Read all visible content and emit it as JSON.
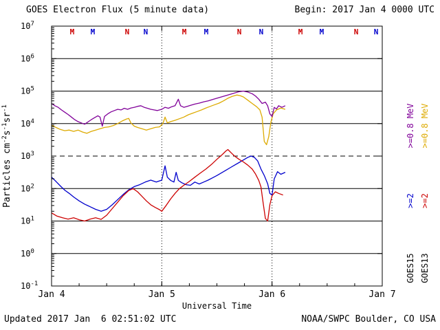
{
  "header": {
    "title": "GOES Electron Flux (5 minute data)",
    "begin": "Begin: 2017 Jan 4 0000 UTC"
  },
  "footer": {
    "updated": "Updated 2017 Jan  6 02:51:02 UTC",
    "source": "NOAA/SWPC Boulder, CO USA"
  },
  "colors": {
    "goes15_2mev": "#0000CC",
    "goes13_2mev": "#CC0000",
    "goes15_08mev": "#800099",
    "goes13_08mev": "#DDAA00",
    "marker_red": "#CC0000",
    "marker_blue": "#0000CC",
    "axis": "#000000"
  },
  "chart_data": {
    "type": "line",
    "title": "GOES Electron Flux (5 minute data)",
    "xlabel": "Universal Time",
    "ylabel": "Particles cm-2s-1sr-1",
    "ylabel_parts": [
      {
        "t": "Particles cm"
      },
      {
        "s": "-2"
      },
      {
        "t": "s"
      },
      {
        "s": "-1"
      },
      {
        "t": "sr"
      },
      {
        "s": "-1"
      }
    ],
    "y_value_type": "log10_flux",
    "xlim_days": [
      0,
      3
    ],
    "ylog_lim": [
      -1,
      7
    ],
    "x_ticks": [
      {
        "t": 0,
        "label": "Jan 4"
      },
      {
        "t": 1,
        "label": "Jan 5"
      },
      {
        "t": 2,
        "label": "Jan 6"
      },
      {
        "t": 3,
        "label": "Jan 7"
      }
    ],
    "y_tick_exponents": [
      -1,
      0,
      1,
      2,
      3,
      4,
      5,
      6,
      7
    ],
    "solid_gridline_exponents": [
      0,
      1,
      2,
      4,
      5,
      6
    ],
    "threshold_exponent": 3,
    "day_gridlines": [
      1,
      2
    ],
    "series": [
      {
        "name": "GOES13 >=0.8 MeV",
        "color_key": "goes13_08mev",
        "points": [
          [
            0,
            3.95
          ],
          [
            0.04,
            3.88
          ],
          [
            0.08,
            3.82
          ],
          [
            0.12,
            3.78
          ],
          [
            0.16,
            3.8
          ],
          [
            0.2,
            3.76
          ],
          [
            0.24,
            3.8
          ],
          [
            0.28,
            3.74
          ],
          [
            0.32,
            3.7
          ],
          [
            0.36,
            3.76
          ],
          [
            0.4,
            3.8
          ],
          [
            0.44,
            3.84
          ],
          [
            0.48,
            3.88
          ],
          [
            0.52,
            3.9
          ],
          [
            0.56,
            3.94
          ],
          [
            0.6,
            4.0
          ],
          [
            0.64,
            4.08
          ],
          [
            0.68,
            4.14
          ],
          [
            0.7,
            4.16
          ],
          [
            0.72,
            4.02
          ],
          [
            0.75,
            3.92
          ],
          [
            0.78,
            3.88
          ],
          [
            0.82,
            3.84
          ],
          [
            0.86,
            3.8
          ],
          [
            0.9,
            3.84
          ],
          [
            0.94,
            3.88
          ],
          [
            0.98,
            3.9
          ],
          [
            1.01,
            4.0
          ],
          [
            1.03,
            4.2
          ],
          [
            1.05,
            4.02
          ],
          [
            1.08,
            4.06
          ],
          [
            1.12,
            4.1
          ],
          [
            1.16,
            4.15
          ],
          [
            1.2,
            4.2
          ],
          [
            1.24,
            4.27
          ],
          [
            1.28,
            4.32
          ],
          [
            1.32,
            4.37
          ],
          [
            1.36,
            4.42
          ],
          [
            1.4,
            4.48
          ],
          [
            1.44,
            4.53
          ],
          [
            1.48,
            4.58
          ],
          [
            1.52,
            4.63
          ],
          [
            1.56,
            4.7
          ],
          [
            1.6,
            4.78
          ],
          [
            1.64,
            4.84
          ],
          [
            1.68,
            4.88
          ],
          [
            1.71,
            4.86
          ],
          [
            1.74,
            4.82
          ],
          [
            1.78,
            4.72
          ],
          [
            1.82,
            4.62
          ],
          [
            1.86,
            4.52
          ],
          [
            1.89,
            4.42
          ],
          [
            1.91,
            4.2
          ],
          [
            1.93,
            3.45
          ],
          [
            1.95,
            3.35
          ],
          [
            1.97,
            3.6
          ],
          [
            1.99,
            4.05
          ],
          [
            2.01,
            4.3
          ],
          [
            2.04,
            4.42
          ],
          [
            2.08,
            4.48
          ],
          [
            2.12,
            4.44
          ]
        ]
      },
      {
        "name": "GOES15 >=0.8 MeV",
        "color_key": "goes15_08mev",
        "points": [
          [
            0,
            4.62
          ],
          [
            0.03,
            4.55
          ],
          [
            0.06,
            4.5
          ],
          [
            0.09,
            4.42
          ],
          [
            0.12,
            4.35
          ],
          [
            0.15,
            4.28
          ],
          [
            0.18,
            4.2
          ],
          [
            0.21,
            4.12
          ],
          [
            0.24,
            4.06
          ],
          [
            0.27,
            4.02
          ],
          [
            0.3,
            3.98
          ],
          [
            0.33,
            4.05
          ],
          [
            0.36,
            4.12
          ],
          [
            0.39,
            4.18
          ],
          [
            0.42,
            4.24
          ],
          [
            0.44,
            4.2
          ],
          [
            0.46,
            3.92
          ],
          [
            0.48,
            4.22
          ],
          [
            0.51,
            4.3
          ],
          [
            0.54,
            4.36
          ],
          [
            0.57,
            4.4
          ],
          [
            0.6,
            4.44
          ],
          [
            0.63,
            4.42
          ],
          [
            0.66,
            4.47
          ],
          [
            0.69,
            4.44
          ],
          [
            0.72,
            4.48
          ],
          [
            0.75,
            4.5
          ],
          [
            0.78,
            4.53
          ],
          [
            0.81,
            4.55
          ],
          [
            0.84,
            4.5
          ],
          [
            0.87,
            4.47
          ],
          [
            0.9,
            4.44
          ],
          [
            0.93,
            4.42
          ],
          [
            0.96,
            4.4
          ],
          [
            1.0,
            4.44
          ],
          [
            1.03,
            4.5
          ],
          [
            1.06,
            4.47
          ],
          [
            1.09,
            4.52
          ],
          [
            1.12,
            4.55
          ],
          [
            1.15,
            4.75
          ],
          [
            1.17,
            4.55
          ],
          [
            1.2,
            4.5
          ],
          [
            1.23,
            4.53
          ],
          [
            1.26,
            4.56
          ],
          [
            1.3,
            4.6
          ],
          [
            1.34,
            4.63
          ],
          [
            1.38,
            4.67
          ],
          [
            1.42,
            4.7
          ],
          [
            1.46,
            4.74
          ],
          [
            1.5,
            4.78
          ],
          [
            1.54,
            4.82
          ],
          [
            1.58,
            4.86
          ],
          [
            1.62,
            4.9
          ],
          [
            1.66,
            4.94
          ],
          [
            1.7,
            4.98
          ],
          [
            1.74,
            5.0
          ],
          [
            1.78,
            4.97
          ],
          [
            1.82,
            4.92
          ],
          [
            1.85,
            4.85
          ],
          [
            1.88,
            4.75
          ],
          [
            1.91,
            4.62
          ],
          [
            1.94,
            4.66
          ],
          [
            1.96,
            4.55
          ],
          [
            1.98,
            4.3
          ],
          [
            2.0,
            4.22
          ],
          [
            2.02,
            4.5
          ],
          [
            2.04,
            4.45
          ],
          [
            2.06,
            4.55
          ],
          [
            2.09,
            4.5
          ],
          [
            2.12,
            4.55
          ]
        ]
      },
      {
        "name": "GOES15 >=2 MeV",
        "color_key": "goes15_2mev",
        "points": [
          [
            0,
            2.35
          ],
          [
            0.04,
            2.22
          ],
          [
            0.08,
            2.08
          ],
          [
            0.12,
            1.95
          ],
          [
            0.16,
            1.85
          ],
          [
            0.2,
            1.74
          ],
          [
            0.25,
            1.62
          ],
          [
            0.3,
            1.52
          ],
          [
            0.35,
            1.44
          ],
          [
            0.4,
            1.36
          ],
          [
            0.45,
            1.3
          ],
          [
            0.5,
            1.36
          ],
          [
            0.55,
            1.5
          ],
          [
            0.6,
            1.66
          ],
          [
            0.65,
            1.82
          ],
          [
            0.7,
            1.96
          ],
          [
            0.75,
            2.06
          ],
          [
            0.8,
            2.12
          ],
          [
            0.85,
            2.2
          ],
          [
            0.9,
            2.26
          ],
          [
            0.95,
            2.2
          ],
          [
            1.0,
            2.26
          ],
          [
            1.03,
            2.7
          ],
          [
            1.05,
            2.35
          ],
          [
            1.08,
            2.25
          ],
          [
            1.11,
            2.2
          ],
          [
            1.13,
            2.5
          ],
          [
            1.15,
            2.25
          ],
          [
            1.18,
            2.18
          ],
          [
            1.22,
            2.12
          ],
          [
            1.26,
            2.1
          ],
          [
            1.3,
            2.2
          ],
          [
            1.34,
            2.14
          ],
          [
            1.38,
            2.2
          ],
          [
            1.42,
            2.26
          ],
          [
            1.46,
            2.33
          ],
          [
            1.5,
            2.4
          ],
          [
            1.54,
            2.48
          ],
          [
            1.58,
            2.56
          ],
          [
            1.62,
            2.64
          ],
          [
            1.66,
            2.72
          ],
          [
            1.7,
            2.8
          ],
          [
            1.74,
            2.88
          ],
          [
            1.78,
            2.96
          ],
          [
            1.81,
            3.0
          ],
          [
            1.84,
            2.96
          ],
          [
            1.87,
            2.85
          ],
          [
            1.9,
            2.6
          ],
          [
            1.93,
            2.4
          ],
          [
            1.96,
            2.15
          ],
          [
            1.98,
            1.85
          ],
          [
            2.0,
            1.8
          ],
          [
            2.02,
            2.3
          ],
          [
            2.05,
            2.52
          ],
          [
            2.08,
            2.44
          ],
          [
            2.12,
            2.5
          ]
        ]
      },
      {
        "name": "GOES13 >=2 MeV",
        "color_key": "goes13_2mev",
        "points": [
          [
            0,
            1.25
          ],
          [
            0.05,
            1.15
          ],
          [
            0.1,
            1.1
          ],
          [
            0.15,
            1.06
          ],
          [
            0.2,
            1.1
          ],
          [
            0.25,
            1.04
          ],
          [
            0.3,
            1.0
          ],
          [
            0.35,
            1.06
          ],
          [
            0.4,
            1.1
          ],
          [
            0.45,
            1.05
          ],
          [
            0.5,
            1.18
          ],
          [
            0.55,
            1.38
          ],
          [
            0.6,
            1.58
          ],
          [
            0.65,
            1.78
          ],
          [
            0.7,
            1.94
          ],
          [
            0.74,
            2.0
          ],
          [
            0.78,
            1.9
          ],
          [
            0.82,
            1.76
          ],
          [
            0.86,
            1.62
          ],
          [
            0.9,
            1.5
          ],
          [
            0.94,
            1.42
          ],
          [
            0.98,
            1.35
          ],
          [
            1.0,
            1.3
          ],
          [
            1.04,
            1.48
          ],
          [
            1.08,
            1.68
          ],
          [
            1.12,
            1.85
          ],
          [
            1.16,
            2.0
          ],
          [
            1.2,
            2.1
          ],
          [
            1.25,
            2.22
          ],
          [
            1.3,
            2.35
          ],
          [
            1.35,
            2.48
          ],
          [
            1.4,
            2.6
          ],
          [
            1.45,
            2.74
          ],
          [
            1.5,
            2.9
          ],
          [
            1.55,
            3.05
          ],
          [
            1.58,
            3.15
          ],
          [
            1.6,
            3.2
          ],
          [
            1.63,
            3.1
          ],
          [
            1.66,
            3.0
          ],
          [
            1.7,
            2.9
          ],
          [
            1.74,
            2.82
          ],
          [
            1.78,
            2.72
          ],
          [
            1.82,
            2.6
          ],
          [
            1.85,
            2.45
          ],
          [
            1.88,
            2.25
          ],
          [
            1.9,
            2.05
          ],
          [
            1.92,
            1.55
          ],
          [
            1.94,
            1.08
          ],
          [
            1.96,
            1.0
          ],
          [
            1.98,
            1.5
          ],
          [
            2.0,
            1.78
          ],
          [
            2.03,
            1.9
          ],
          [
            2.06,
            1.85
          ],
          [
            2.1,
            1.8
          ]
        ]
      }
    ],
    "markers": [
      {
        "t": 0.187,
        "label": "M",
        "color_key": "marker_red"
      },
      {
        "t": 0.374,
        "label": "M",
        "color_key": "marker_blue"
      },
      {
        "t": 0.686,
        "label": "N",
        "color_key": "marker_red"
      },
      {
        "t": 0.854,
        "label": "N",
        "color_key": "marker_blue"
      },
      {
        "t": 1.204,
        "label": "M",
        "color_key": "marker_red"
      },
      {
        "t": 1.403,
        "label": "M",
        "color_key": "marker_blue"
      },
      {
        "t": 1.703,
        "label": "N",
        "color_key": "marker_red"
      },
      {
        "t": 1.902,
        "label": "N",
        "color_key": "marker_blue"
      },
      {
        "t": 2.258,
        "label": "M",
        "color_key": "marker_red"
      },
      {
        "t": 2.451,
        "label": "M",
        "color_key": "marker_blue"
      },
      {
        "t": 2.763,
        "label": "N",
        "color_key": "marker_red"
      },
      {
        "t": 2.944,
        "label": "N",
        "color_key": "marker_blue"
      }
    ],
    "legend": {
      "columns": [
        {
          "satellite": "GOES15",
          "entries": [
            {
              "label": ">=2",
              "color_key": "goes15_2mev"
            },
            {
              "label": ">=0.8 MeV",
              "color_key": "goes15_08mev"
            }
          ]
        },
        {
          "satellite": "GOES13",
          "entries": [
            {
              "label": ">=2",
              "color_key": "goes13_2mev"
            },
            {
              "label": ">=0.8 MeV",
              "color_key": "goes13_08mev"
            }
          ]
        }
      ]
    }
  }
}
